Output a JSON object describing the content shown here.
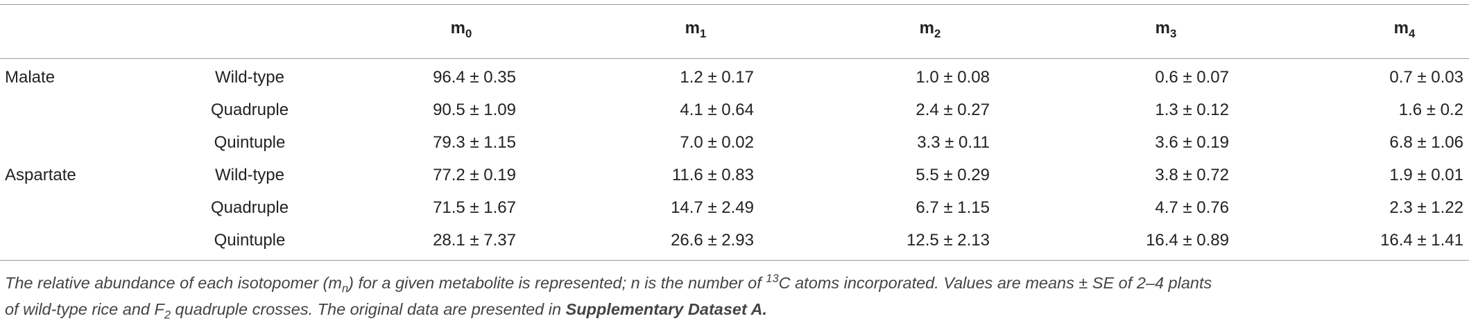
{
  "table": {
    "columns": [
      {
        "base": "m",
        "sub": "0"
      },
      {
        "base": "m",
        "sub": "1"
      },
      {
        "base": "m",
        "sub": "2"
      },
      {
        "base": "m",
        "sub": "3"
      },
      {
        "base": "m",
        "sub": "4"
      }
    ],
    "rows": [
      {
        "metabolite": "Malate",
        "genotype": "Wild-type",
        "values": [
          "96.4 ± 0.35",
          "1.2 ± 0.17",
          "1.0 ± 0.08",
          "0.6 ± 0.07",
          "0.7 ± 0.03"
        ]
      },
      {
        "metabolite": null,
        "genotype": "Quadruple",
        "values": [
          "90.5 ± 1.09",
          "4.1 ± 0.64",
          "2.4 ± 0.27",
          "1.3 ± 0.12",
          "1.6 ± 0.2"
        ]
      },
      {
        "metabolite": null,
        "genotype": "Quintuple",
        "values": [
          "79.3 ± 1.15",
          "7.0 ± 0.02",
          "3.3 ± 0.11",
          "3.6 ± 0.19",
          "6.8 ± 1.06"
        ]
      },
      {
        "metabolite": "Aspartate",
        "genotype": "Wild-type",
        "values": [
          "77.2 ± 0.19",
          "11.6 ± 0.83",
          "5.5 ± 0.29",
          "3.8 ± 0.72",
          "1.9 ± 0.01"
        ]
      },
      {
        "metabolite": null,
        "genotype": "Quadruple",
        "values": [
          "71.5 ± 1.67",
          "14.7 ± 2.49",
          "6.7 ± 1.15",
          "4.7 ± 0.76",
          "2.3 ± 1.22"
        ]
      },
      {
        "metabolite": null,
        "genotype": "Quintuple",
        "values": [
          "28.1 ± 7.37",
          "26.6 ± 2.93",
          "12.5 ± 2.13",
          "16.4 ± 0.89",
          "16.4 ± 1.41"
        ]
      }
    ]
  },
  "caption": {
    "lines": [
      [
        {
          "text": "The relative abundance of each isotopomer (m"
        },
        {
          "text": "n",
          "style": "sub"
        },
        {
          "text": ") for a given metabolite is represented; n is the number of "
        },
        {
          "text": "13",
          "style": "sup"
        },
        {
          "text": "C atoms incorporated. Values are means ± SE of 2–4 plants"
        }
      ],
      [
        {
          "text": "of wild-type rice and F"
        },
        {
          "text": "2",
          "style": "sub"
        },
        {
          "text": " quadruple crosses. The original data are presented in "
        },
        {
          "text": "Supplementary Dataset A.",
          "style": "bold"
        }
      ]
    ]
  }
}
